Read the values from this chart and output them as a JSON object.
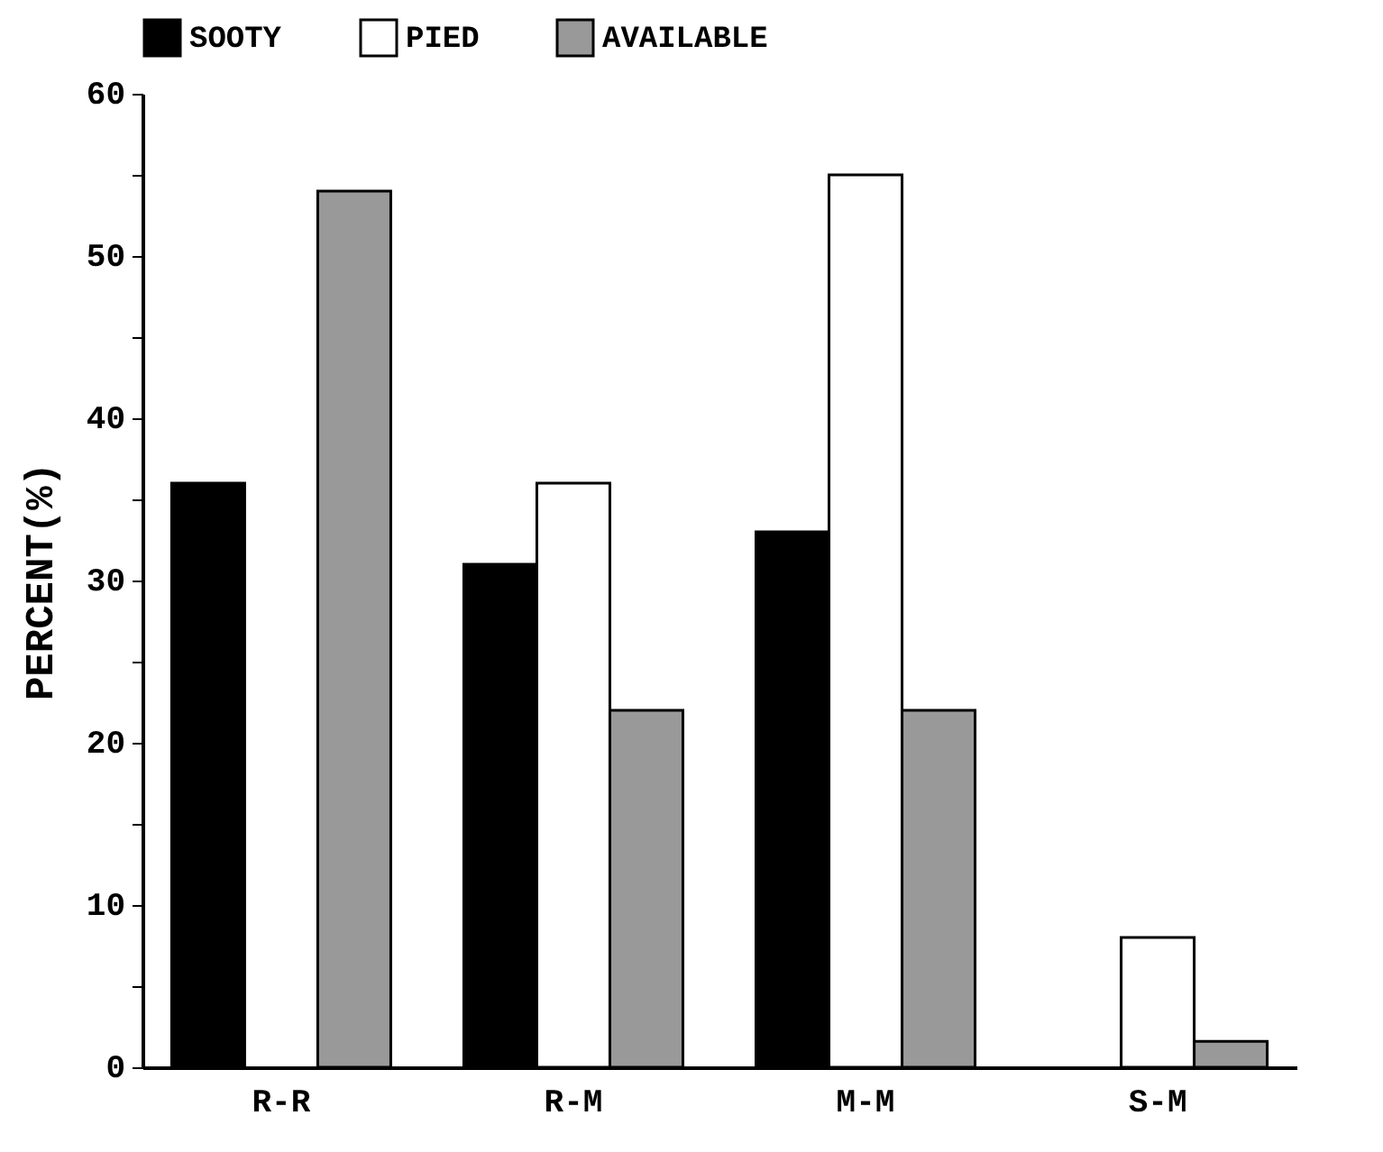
{
  "chart_data": {
    "type": "bar",
    "ylabel": "PERCENT(%)",
    "categories": [
      "R-R",
      "R-M",
      "M-M",
      "S-M"
    ],
    "series": [
      {
        "name": "SOOTY",
        "color": "#000000",
        "values": [
          36,
          31,
          33,
          null
        ]
      },
      {
        "name": "PIED",
        "color": "#ffffff",
        "values": [
          null,
          36,
          55,
          8
        ]
      },
      {
        "name": "AVAILABLE",
        "color": "#999999",
        "values": [
          54,
          22,
          22,
          1.6
        ]
      }
    ],
    "ylim": [
      0,
      60
    ],
    "yticks": [
      0,
      {
        "value": 5,
        "label": null
      },
      10,
      {
        "value": 15,
        "label": null
      },
      20,
      {
        "value": 25,
        "label": null
      },
      30,
      {
        "value": 35,
        "label": null
      },
      40,
      {
        "value": 45,
        "label": null
      },
      50,
      {
        "value": 55,
        "label": null
      },
      60
    ],
    "grid": false,
    "legend": "top"
  }
}
